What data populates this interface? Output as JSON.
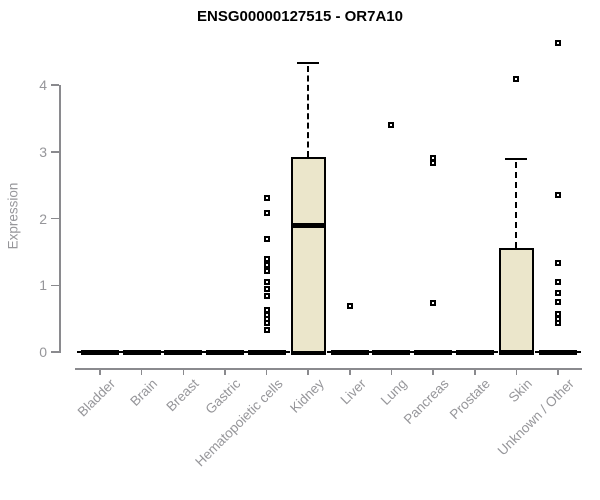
{
  "chart_data": {
    "type": "boxplot",
    "title": "ENSG00000127515 - OR7A10",
    "ylabel": "Expression",
    "xlabel": "",
    "ylim": [
      0,
      4.7
    ],
    "yticks": [
      0,
      1,
      2,
      3,
      4
    ],
    "grid": false,
    "legend_position": "none",
    "categories": [
      "Bladder",
      "Brain",
      "Breast",
      "Gastric",
      "Hematopoietic cells",
      "Kidney",
      "Liver",
      "Lung",
      "Pancreas",
      "Prostate",
      "Skin",
      "Unknown / Other"
    ],
    "boxes": [
      {
        "category": "Bladder",
        "q1": 0,
        "median": 0,
        "q3": 0,
        "whisker_low": 0,
        "whisker_high": 0,
        "outliers": []
      },
      {
        "category": "Brain",
        "q1": 0,
        "median": 0,
        "q3": 0,
        "whisker_low": 0,
        "whisker_high": 0,
        "outliers": []
      },
      {
        "category": "Breast",
        "q1": 0,
        "median": 0,
        "q3": 0,
        "whisker_low": 0,
        "whisker_high": 0,
        "outliers": []
      },
      {
        "category": "Gastric",
        "q1": 0,
        "median": 0,
        "q3": 0,
        "whisker_low": 0,
        "whisker_high": 0,
        "outliers": []
      },
      {
        "category": "Hematopoietic cells",
        "q1": 0,
        "median": 0,
        "q3": 0,
        "whisker_low": 0,
        "whisker_high": 0,
        "outliers": [
          2.31,
          2.08,
          1.69,
          1.4,
          1.31,
          1.22,
          1.05,
          0.94,
          0.84,
          0.63,
          0.56,
          0.5,
          0.44,
          0.33
        ]
      },
      {
        "category": "Kidney",
        "q1": 0,
        "median": 1.9,
        "q3": 2.92,
        "whisker_low": 0,
        "whisker_high": 4.33,
        "outliers": []
      },
      {
        "category": "Liver",
        "q1": 0,
        "median": 0,
        "q3": 0,
        "whisker_low": 0,
        "whisker_high": 0,
        "outliers": [
          0.69
        ]
      },
      {
        "category": "Lung",
        "q1": 0,
        "median": 0,
        "q3": 0,
        "whisker_low": 0,
        "whisker_high": 0,
        "outliers": [
          3.4
        ]
      },
      {
        "category": "Pancreas",
        "q1": 0,
        "median": 0,
        "q3": 0,
        "whisker_low": 0,
        "whisker_high": 0,
        "outliers": [
          2.91,
          2.83,
          0.73
        ]
      },
      {
        "category": "Prostate",
        "q1": 0,
        "median": 0,
        "q3": 0,
        "whisker_low": 0,
        "whisker_high": 0,
        "outliers": []
      },
      {
        "category": "Skin",
        "q1": 0,
        "median": 0,
        "q3": 1.56,
        "whisker_low": 0,
        "whisker_high": 2.89,
        "outliers": [
          4.09
        ]
      },
      {
        "category": "Unknown / Other",
        "q1": 0,
        "median": 0,
        "q3": 0,
        "whisker_low": 0,
        "whisker_high": 0,
        "outliers": [
          4.63,
          2.35,
          1.33,
          1.05,
          0.88,
          0.75,
          0.57,
          0.5,
          0.43
        ]
      }
    ]
  },
  "colors": {
    "box_fill": "#EBE6CB",
    "box_stroke": "#000000",
    "axis_color": "#8A8A8E",
    "tick_label_color": "#96969A",
    "title_color": "#000000",
    "background": "#FFFFFF"
  }
}
